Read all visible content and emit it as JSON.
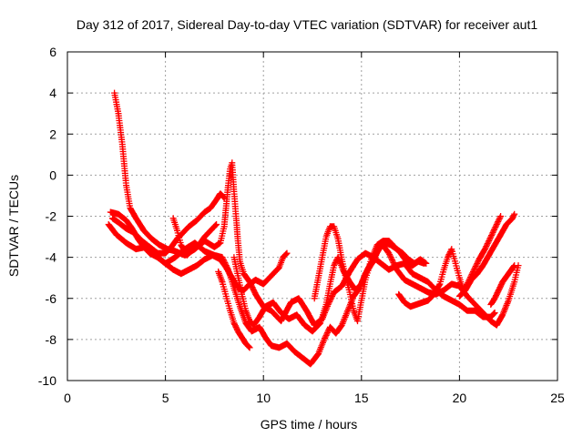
{
  "chart_data": {
    "type": "scatter",
    "title": "Day 312 of 2017, Sidereal Day-to-day VTEC variation (SDTVAR) for receiver aut1",
    "xlabel": "GPS time / hours",
    "ylabel": "SDTVAR / TECUs",
    "xlim": [
      0,
      25
    ],
    "ylim": [
      -10,
      6
    ],
    "xticks": [
      0,
      5,
      10,
      15,
      20,
      25
    ],
    "yticks": [
      -10,
      -8,
      -6,
      -4,
      -2,
      0,
      2,
      4,
      6
    ],
    "grid": true,
    "marker": "+",
    "color": "#ff0000",
    "series": [
      {
        "name": "trace-1",
        "points": [
          [
            2.1,
            -2.4
          ],
          [
            2.5,
            -2.9
          ],
          [
            3.0,
            -3.3
          ],
          [
            3.5,
            -3.6
          ],
          [
            4.0,
            -3.5
          ],
          [
            4.5,
            -3.9
          ],
          [
            5.0,
            -4.3
          ],
          [
            5.5,
            -4.0
          ],
          [
            6.0,
            -3.6
          ],
          [
            6.5,
            -3.3
          ],
          [
            7.0,
            -3.7
          ],
          [
            7.5,
            -3.9
          ],
          [
            7.9,
            -4.0
          ],
          [
            8.2,
            -4.6
          ],
          [
            8.5,
            -5.5
          ],
          [
            8.8,
            -6.4
          ],
          [
            9.1,
            -7.2
          ],
          [
            9.4,
            -7.6
          ],
          [
            9.8,
            -7.4
          ],
          [
            10.1,
            -7.9
          ],
          [
            10.4,
            -8.3
          ],
          [
            10.8,
            -8.4
          ],
          [
            11.2,
            -8.2
          ],
          [
            11.6,
            -8.6
          ],
          [
            12.0,
            -8.9
          ],
          [
            12.4,
            -9.2
          ],
          [
            12.8,
            -8.7
          ],
          [
            13.1,
            -8.0
          ],
          [
            13.4,
            -7.4
          ],
          [
            13.7,
            -7.7
          ],
          [
            14.0,
            -7.3
          ],
          [
            14.3,
            -6.6
          ],
          [
            14.6,
            -5.9
          ],
          [
            14.9,
            -5.5
          ],
          [
            15.2,
            -4.8
          ],
          [
            15.6,
            -4.2
          ],
          [
            16.0,
            -3.3
          ],
          [
            16.4,
            -3.8
          ],
          [
            16.8,
            -4.6
          ],
          [
            17.2,
            -5.1
          ],
          [
            17.6,
            -5.3
          ],
          [
            18.0,
            -5.5
          ],
          [
            18.4,
            -5.7
          ],
          [
            18.8,
            -5.8
          ],
          [
            19.2,
            -5.6
          ],
          [
            19.6,
            -5.3
          ],
          [
            20.0,
            -5.4
          ],
          [
            20.4,
            -5.9
          ],
          [
            20.8,
            -6.3
          ],
          [
            21.2,
            -6.7
          ],
          [
            21.6,
            -7.1
          ],
          [
            21.9,
            -7.3
          ],
          [
            22.2,
            -6.8
          ],
          [
            22.5,
            -6.1
          ],
          [
            22.8,
            -5.2
          ],
          [
            23.0,
            -4.4
          ]
        ]
      },
      {
        "name": "trace-2",
        "points": [
          [
            2.4,
            4.0
          ],
          [
            2.6,
            3.0
          ],
          [
            2.8,
            1.5
          ],
          [
            3.0,
            -0.5
          ],
          [
            3.2,
            -1.6
          ],
          [
            3.5,
            -2.1
          ],
          [
            3.9,
            -2.7
          ],
          [
            4.3,
            -3.1
          ],
          [
            4.7,
            -3.4
          ],
          [
            5.1,
            -3.6
          ],
          [
            5.5,
            -3.7
          ],
          [
            6.0,
            -3.9
          ],
          [
            6.5,
            -3.6
          ],
          [
            7.0,
            -3.2
          ],
          [
            7.5,
            -3.5
          ],
          [
            7.8,
            -3.3
          ],
          [
            8.0,
            -2.5
          ],
          [
            8.1,
            -1.5
          ],
          [
            8.2,
            -0.5
          ],
          [
            8.3,
            0.3
          ],
          [
            8.4,
            0.6
          ],
          [
            8.5,
            -0.8
          ],
          [
            8.6,
            -2.0
          ],
          [
            8.7,
            -3.2
          ],
          [
            8.8,
            -4.2
          ],
          [
            9.0,
            -4.8
          ],
          [
            9.3,
            -5.2
          ],
          [
            9.6,
            -5.8
          ],
          [
            10.0,
            -6.4
          ],
          [
            10.4,
            -6.6
          ],
          [
            10.9,
            -7.1
          ],
          [
            11.4,
            -6.2
          ],
          [
            11.8,
            -6.0
          ],
          [
            12.2,
            -6.6
          ],
          [
            12.6,
            -7.3
          ],
          [
            13.0,
            -7.0
          ],
          [
            13.3,
            -6.3
          ],
          [
            13.6,
            -5.7
          ],
          [
            14.0,
            -5.4
          ],
          [
            14.4,
            -4.7
          ],
          [
            14.8,
            -4.1
          ],
          [
            15.2,
            -3.8
          ],
          [
            15.6,
            -4.0
          ],
          [
            16.0,
            -4.3
          ],
          [
            16.4,
            -4.6
          ],
          [
            16.8,
            -4.4
          ],
          [
            17.2,
            -4.3
          ],
          [
            17.6,
            -4.8
          ],
          [
            18.0,
            -5.0
          ],
          [
            18.4,
            -5.2
          ],
          [
            18.8,
            -5.6
          ],
          [
            19.2,
            -5.9
          ],
          [
            19.6,
            -6.1
          ],
          [
            20.0,
            -6.3
          ],
          [
            20.4,
            -6.6
          ],
          [
            20.8,
            -6.6
          ],
          [
            21.2,
            -6.9
          ],
          [
            21.6,
            -6.9
          ],
          [
            21.8,
            -6.7
          ]
        ]
      },
      {
        "name": "trace-3",
        "points": [
          [
            2.2,
            -1.8
          ],
          [
            2.6,
            -1.9
          ],
          [
            3.0,
            -2.2
          ],
          [
            3.3,
            -2.6
          ],
          [
            3.6,
            -3.1
          ],
          [
            3.9,
            -3.5
          ],
          [
            4.2,
            -3.8
          ],
          [
            4.6,
            -4.0
          ],
          [
            5.0,
            -4.3
          ],
          [
            5.4,
            -4.6
          ],
          [
            5.8,
            -4.8
          ],
          [
            6.2,
            -4.6
          ],
          [
            6.6,
            -4.4
          ],
          [
            7.0,
            -4.1
          ],
          [
            7.4,
            -3.9
          ],
          [
            7.8,
            -4.1
          ],
          [
            8.1,
            -4.5
          ],
          [
            8.4,
            -5.0
          ],
          [
            8.7,
            -5.5
          ],
          [
            9.0,
            -5.6
          ],
          [
            9.3,
            -5.3
          ],
          [
            9.6,
            -5.1
          ],
          [
            10.0,
            -5.3
          ],
          [
            10.4,
            -4.9
          ],
          [
            10.8,
            -4.5
          ],
          [
            11.0,
            -4.0
          ],
          [
            11.2,
            -3.8
          ]
        ]
      },
      {
        "name": "trace-4",
        "points": [
          [
            2.3,
            -2.1
          ],
          [
            2.6,
            -2.3
          ],
          [
            3.0,
            -2.6
          ],
          [
            3.4,
            -2.8
          ],
          [
            3.8,
            -3.2
          ],
          [
            4.2,
            -3.5
          ],
          [
            4.6,
            -3.8
          ],
          [
            5.0,
            -3.8
          ],
          [
            5.3,
            -3.5
          ],
          [
            5.6,
            -3.1
          ],
          [
            5.9,
            -2.8
          ],
          [
            6.2,
            -2.5
          ],
          [
            6.6,
            -2.2
          ],
          [
            7.0,
            -1.8
          ],
          [
            7.3,
            -1.6
          ],
          [
            7.6,
            -1.2
          ],
          [
            7.8,
            -0.9
          ],
          [
            8.0,
            -1.1
          ]
        ]
      },
      {
        "name": "trace-5",
        "points": [
          [
            5.4,
            -2.1
          ],
          [
            5.6,
            -2.7
          ],
          [
            5.8,
            -3.4
          ],
          [
            6.1,
            -3.9
          ],
          [
            6.4,
            -3.6
          ],
          [
            6.7,
            -3.4
          ],
          [
            7.0,
            -3.0
          ],
          [
            7.3,
            -2.7
          ],
          [
            7.6,
            -2.4
          ]
        ]
      },
      {
        "name": "trace-6",
        "points": [
          [
            8.5,
            -4.0
          ],
          [
            8.7,
            -4.9
          ],
          [
            8.9,
            -5.8
          ],
          [
            9.1,
            -6.6
          ],
          [
            9.3,
            -7.1
          ],
          [
            9.5,
            -7.3
          ],
          [
            9.8,
            -6.9
          ],
          [
            10.1,
            -6.4
          ],
          [
            10.5,
            -6.2
          ],
          [
            10.9,
            -6.7
          ],
          [
            11.3,
            -7.0
          ],
          [
            11.7,
            -6.8
          ],
          [
            12.1,
            -7.3
          ],
          [
            12.5,
            -7.6
          ],
          [
            12.9,
            -7.2
          ],
          [
            13.2,
            -6.3
          ],
          [
            13.4,
            -5.3
          ],
          [
            13.6,
            -4.4
          ],
          [
            13.8,
            -4.0
          ],
          [
            14.1,
            -4.7
          ],
          [
            14.4,
            -5.2
          ],
          [
            14.7,
            -5.6
          ],
          [
            15.0,
            -5.3
          ],
          [
            15.3,
            -4.6
          ],
          [
            15.6,
            -4.1
          ],
          [
            15.9,
            -3.6
          ],
          [
            16.2,
            -3.3
          ],
          [
            16.5,
            -3.4
          ],
          [
            16.8,
            -3.6
          ],
          [
            17.1,
            -3.8
          ],
          [
            17.4,
            -4.1
          ],
          [
            17.7,
            -4.3
          ],
          [
            18.0,
            -4.1
          ],
          [
            18.3,
            -4.3
          ]
        ]
      },
      {
        "name": "trace-7",
        "points": [
          [
            9.3,
            -8.4
          ],
          [
            9.1,
            -8.2
          ],
          [
            8.9,
            -7.9
          ],
          [
            8.7,
            -7.6
          ],
          [
            8.5,
            -7.2
          ],
          [
            8.3,
            -6.6
          ],
          [
            8.1,
            -5.9
          ],
          [
            7.9,
            -5.2
          ],
          [
            7.7,
            -4.7
          ]
        ]
      },
      {
        "name": "trace-8",
        "points": [
          [
            12.6,
            -6.0
          ],
          [
            12.8,
            -5.0
          ],
          [
            13.0,
            -4.0
          ],
          [
            13.2,
            -3.0
          ],
          [
            13.4,
            -2.5
          ],
          [
            13.6,
            -2.5
          ],
          [
            13.8,
            -3.1
          ],
          [
            14.0,
            -4.1
          ],
          [
            14.2,
            -5.0
          ],
          [
            14.4,
            -5.7
          ],
          [
            14.6,
            -6.6
          ],
          [
            14.8,
            -7.1
          ],
          [
            15.0,
            -6.1
          ],
          [
            15.2,
            -5.1
          ],
          [
            15.5,
            -4.1
          ],
          [
            15.8,
            -3.4
          ],
          [
            16.1,
            -3.2
          ],
          [
            16.4,
            -3.2
          ],
          [
            16.7,
            -3.5
          ],
          [
            17.0,
            -3.8
          ],
          [
            17.3,
            -4.2
          ],
          [
            17.6,
            -4.4
          ],
          [
            17.9,
            -4.2
          ],
          [
            18.2,
            -4.3
          ]
        ]
      },
      {
        "name": "trace-9",
        "points": [
          [
            16.9,
            -5.8
          ],
          [
            17.2,
            -6.2
          ],
          [
            17.5,
            -6.4
          ],
          [
            17.8,
            -6.3
          ],
          [
            18.1,
            -6.2
          ],
          [
            18.4,
            -6.1
          ],
          [
            18.7,
            -5.8
          ],
          [
            19.0,
            -5.3
          ],
          [
            19.2,
            -4.6
          ],
          [
            19.4,
            -4.0
          ],
          [
            19.6,
            -3.6
          ],
          [
            19.8,
            -4.3
          ],
          [
            20.0,
            -5.0
          ],
          [
            20.2,
            -5.6
          ],
          [
            20.4,
            -5.3
          ],
          [
            20.7,
            -4.7
          ],
          [
            21.0,
            -4.1
          ],
          [
            21.3,
            -3.6
          ],
          [
            21.6,
            -3.0
          ],
          [
            21.9,
            -2.4
          ],
          [
            22.1,
            -2.0
          ]
        ]
      },
      {
        "name": "trace-10",
        "points": [
          [
            20.0,
            -5.9
          ],
          [
            20.3,
            -5.6
          ],
          [
            20.6,
            -5.1
          ],
          [
            20.9,
            -4.8
          ],
          [
            21.2,
            -4.4
          ],
          [
            21.5,
            -3.9
          ],
          [
            21.8,
            -3.4
          ],
          [
            22.1,
            -2.9
          ],
          [
            22.4,
            -2.4
          ],
          [
            22.7,
            -2.1
          ],
          [
            22.8,
            -1.9
          ]
        ]
      },
      {
        "name": "trace-11",
        "points": [
          [
            21.6,
            -6.3
          ],
          [
            21.8,
            -6.0
          ],
          [
            22.0,
            -5.6
          ],
          [
            22.2,
            -5.2
          ],
          [
            22.5,
            -4.8
          ],
          [
            22.8,
            -4.4
          ]
        ]
      }
    ]
  }
}
